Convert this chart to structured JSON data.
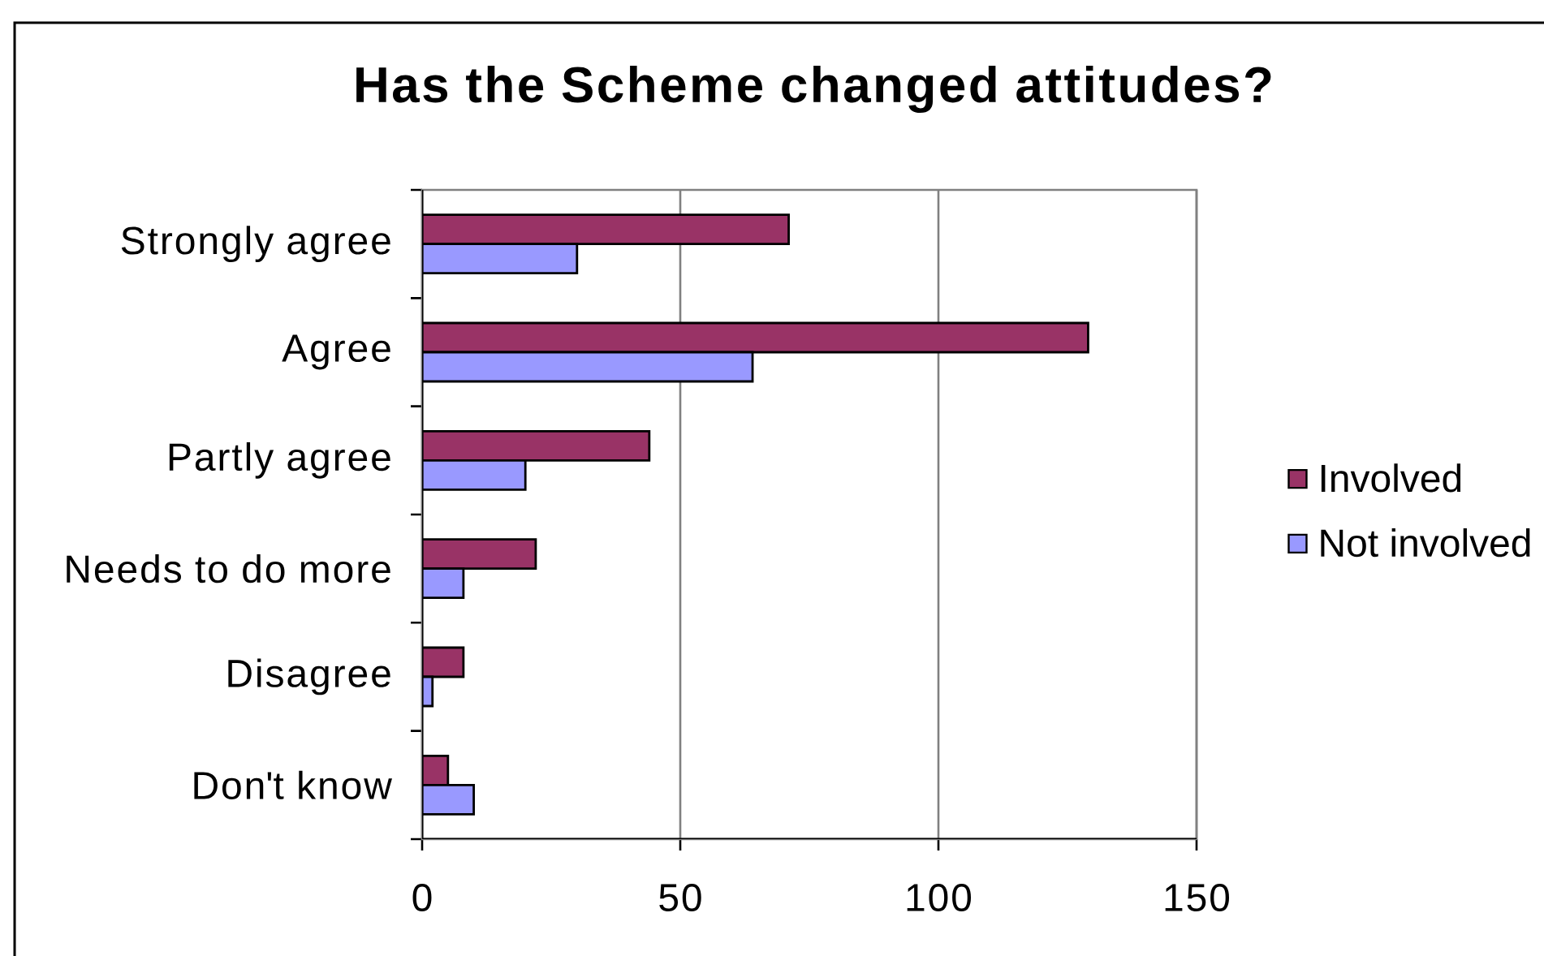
{
  "chart_data": {
    "type": "bar",
    "orientation": "horizontal",
    "title": "Has the Scheme changed attitudes?",
    "categories": [
      "Strongly agree",
      "Agree",
      "Partly agree",
      "Needs to do more",
      "Disagree",
      "Don't know"
    ],
    "series": [
      {
        "name": "Involved",
        "color": "#993366",
        "values": [
          71,
          129,
          44,
          22,
          8,
          5
        ]
      },
      {
        "name": "Not involved",
        "color": "#9999ff",
        "values": [
          30,
          64,
          20,
          8,
          2,
          10
        ]
      }
    ],
    "xlim": [
      0,
      150
    ],
    "xticks": [
      0,
      50,
      100,
      150
    ],
    "grid": "x",
    "legend": "right"
  }
}
